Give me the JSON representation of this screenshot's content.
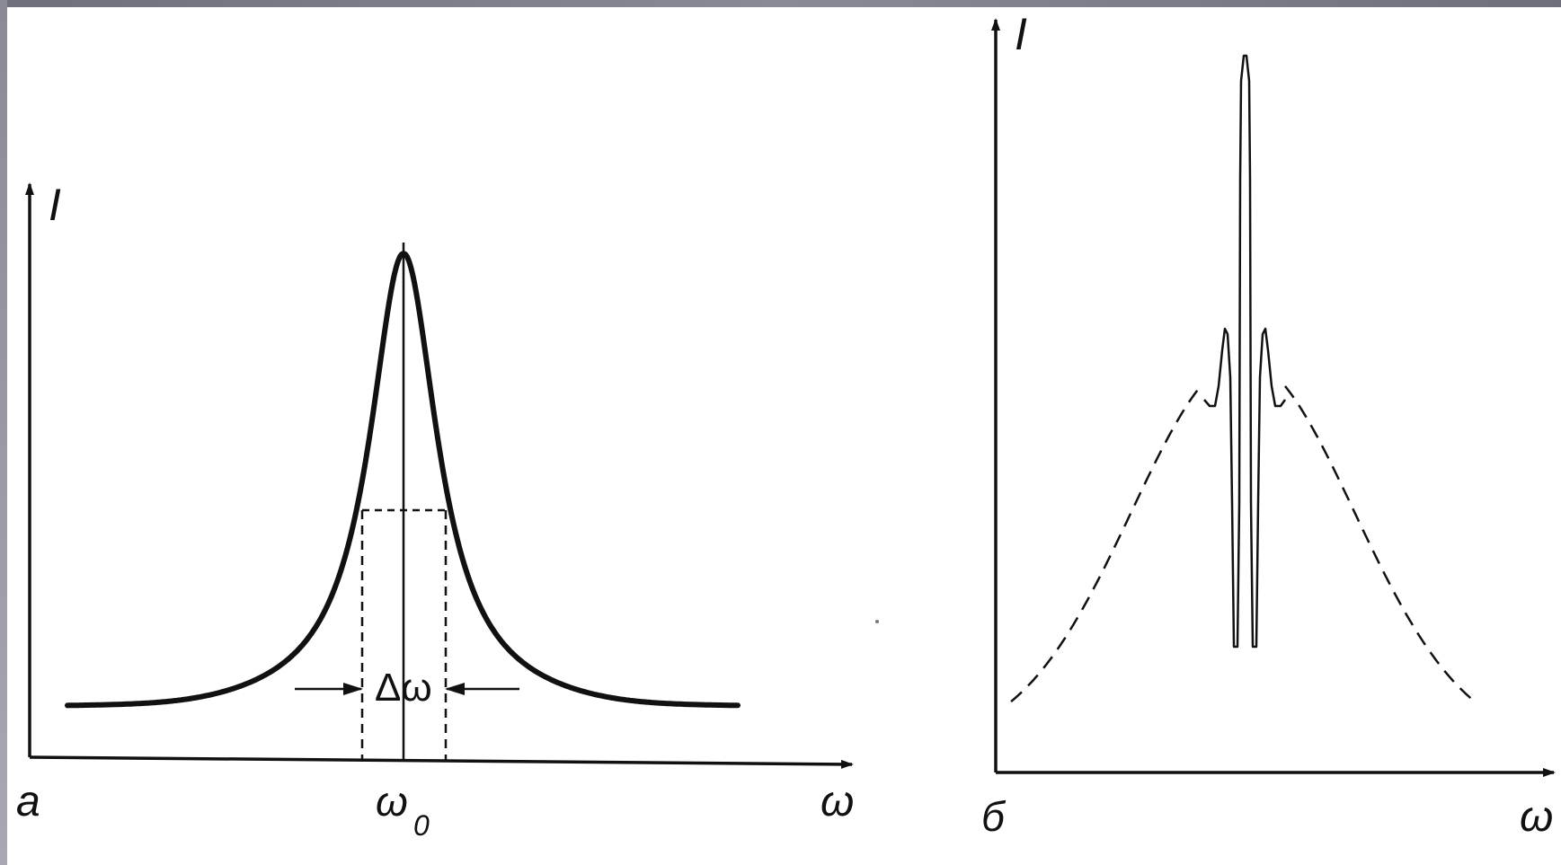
{
  "chart_data": [
    {
      "type": "line",
      "panel_label": "а",
      "ylabel": "I",
      "xlabel": "ω",
      "center_label": "ω",
      "center_sub": "0",
      "width_label": "Δω",
      "curve": "single peak centered at ω0 with half-height width Δω",
      "colors": {
        "curve": "#111111"
      }
    },
    {
      "type": "line",
      "panel_label": "б",
      "ylabel": "I",
      "xlabel": "ω",
      "curve": "narrow tall central peak with two side maxima on a dashed broad envelope",
      "colors": {
        "curve": "#111111"
      }
    }
  ]
}
